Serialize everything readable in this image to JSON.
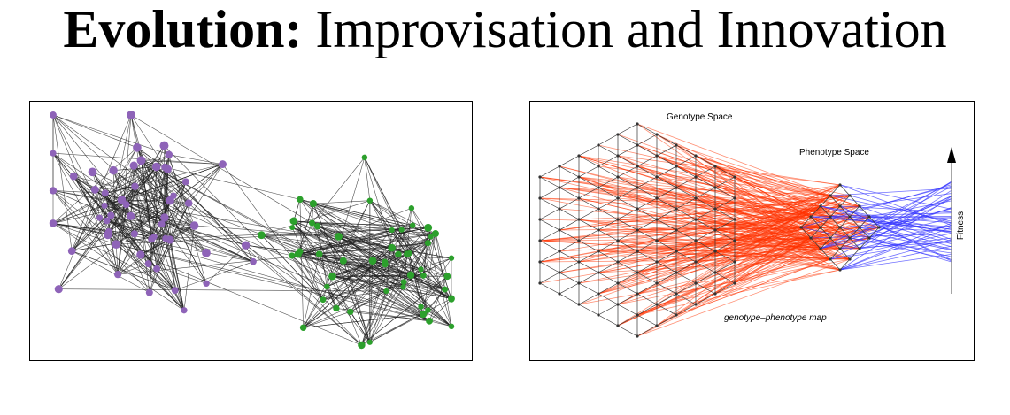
{
  "title": {
    "bold": "Evolution:",
    "rest": "Improvisation and Innovation"
  },
  "right_panel": {
    "genotype_label": "Genotype Space",
    "phenotype_label": "Phenotype Space",
    "map_label": "genotype–phenotype map",
    "fitness_label": "Fitness"
  }
}
